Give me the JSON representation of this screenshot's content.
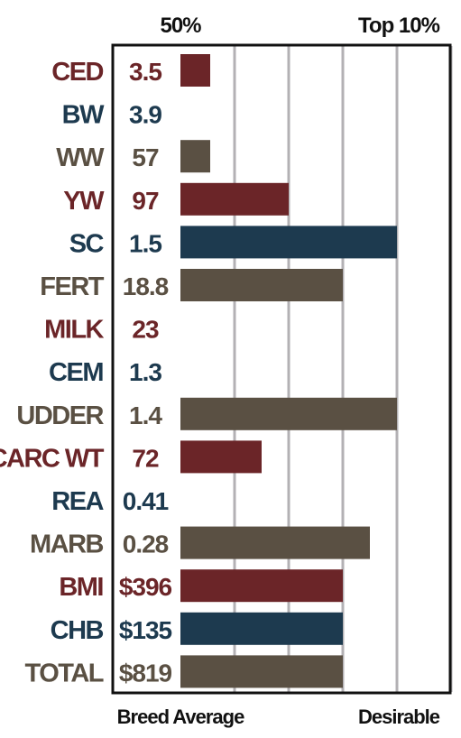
{
  "chart_data": {
    "type": "bar",
    "orientation": "horizontal",
    "top_labels": {
      "left": "50%",
      "right": "Top 10%"
    },
    "bottom_labels": {
      "left": "Breed Average",
      "right": "Desirable"
    },
    "x_scale": {
      "min": 0,
      "max": 5,
      "unit": "bar length in grid intervals (grid line every 1)"
    },
    "grid": true,
    "colors": {
      "maroon": "#6b2528",
      "navy": "#1d3a4f",
      "taupe": "#5a5043",
      "grid": "#b3b1b4",
      "frame": "#111111"
    },
    "rows": [
      {
        "trait": "CED",
        "value": "3.5",
        "color": "maroon",
        "bar": 0.55
      },
      {
        "trait": "BW",
        "value": "3.9",
        "color": "navy",
        "bar": 0
      },
      {
        "trait": "WW",
        "value": "57",
        "color": "taupe",
        "bar": 0.55
      },
      {
        "trait": "YW",
        "value": "97",
        "color": "maroon",
        "bar": 2.0
      },
      {
        "trait": "SC",
        "value": "1.5",
        "color": "navy",
        "bar": 4.0
      },
      {
        "trait": "FERT",
        "value": "18.8",
        "color": "taupe",
        "bar": 3.0
      },
      {
        "trait": "MILK",
        "value": "23",
        "color": "maroon",
        "bar": 0
      },
      {
        "trait": "CEM",
        "value": "1.3",
        "color": "navy",
        "bar": 0
      },
      {
        "trait": "UDDER",
        "value": "1.4",
        "color": "taupe",
        "bar": 4.0
      },
      {
        "trait": "CARC WT",
        "value": "72",
        "color": "maroon",
        "bar": 1.5
      },
      {
        "trait": "REA",
        "value": "0.41",
        "color": "navy",
        "bar": 0
      },
      {
        "trait": "MARB",
        "value": "0.28",
        "color": "taupe",
        "bar": 3.5
      },
      {
        "trait": "BMI",
        "value": "$396",
        "color": "maroon",
        "bar": 3.0
      },
      {
        "trait": "CHB",
        "value": "$135",
        "color": "navy",
        "bar": 3.0
      },
      {
        "trait": "TOTAL",
        "value": "$819",
        "color": "taupe",
        "bar": 3.0
      }
    ]
  }
}
